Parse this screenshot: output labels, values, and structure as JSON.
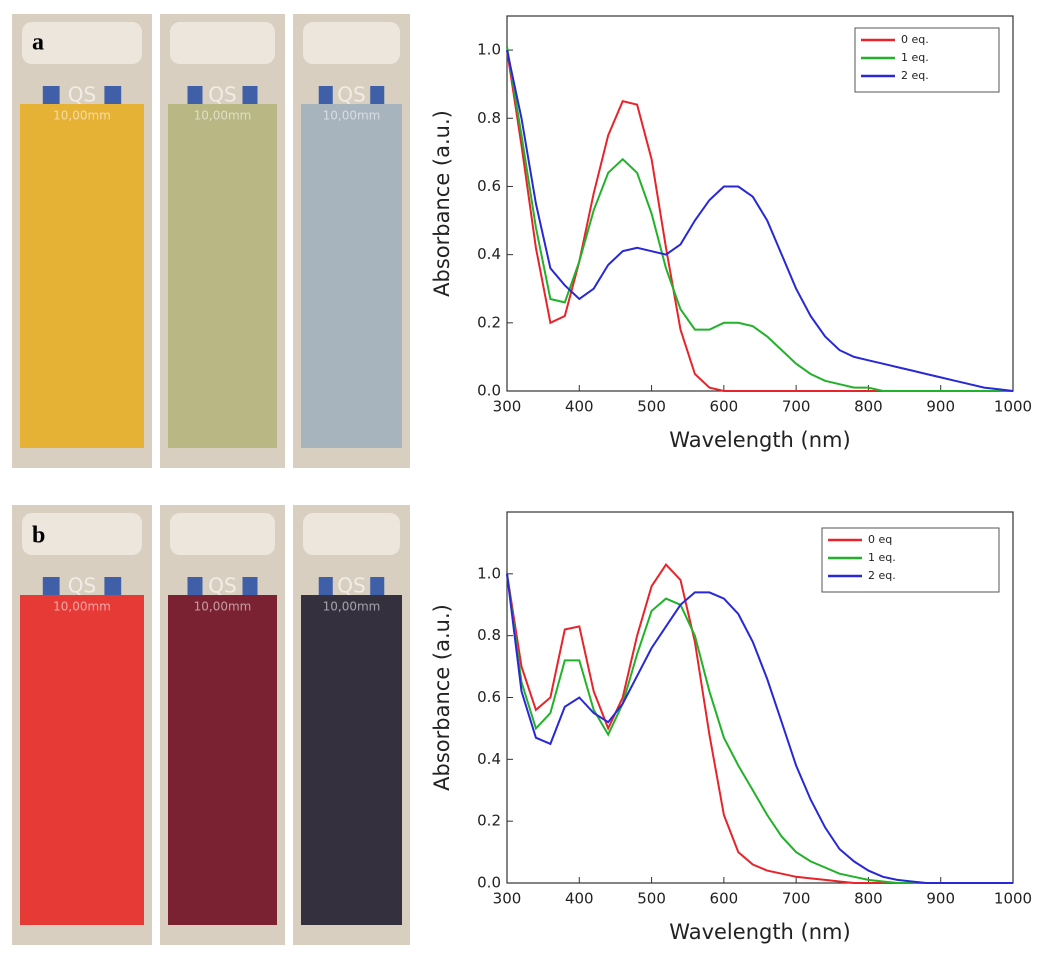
{
  "chart_data": [
    {
      "type": "line",
      "panel": "a",
      "cuvettes": [
        {
          "label": "QS",
          "sublabel": "10,00mm",
          "color": "#e6b236"
        },
        {
          "label": "QS",
          "sublabel": "10,00mm",
          "color": "#b9b784"
        },
        {
          "label": "QS",
          "sublabel": "10,00mm",
          "color": "#a7b3bd"
        }
      ],
      "x_label": "Wavelength (nm)",
      "y_label": "Absorbance (a.u.)",
      "x": [
        300,
        320,
        340,
        360,
        380,
        400,
        420,
        440,
        460,
        480,
        500,
        520,
        540,
        560,
        580,
        600,
        620,
        640,
        660,
        680,
        700,
        720,
        740,
        760,
        780,
        800,
        820,
        840,
        860,
        880,
        900,
        920,
        940,
        960,
        980,
        1000
      ],
      "series": [
        {
          "name": "0 eq.",
          "color": "#e8232a",
          "values": [
            1.0,
            0.72,
            0.42,
            0.2,
            0.22,
            0.38,
            0.58,
            0.75,
            0.85,
            0.84,
            0.68,
            0.42,
            0.18,
            0.05,
            0.01,
            0,
            0,
            0,
            0,
            0,
            0,
            0,
            0,
            0,
            0,
            0,
            0,
            0,
            0,
            0,
            0,
            0,
            0,
            0,
            0,
            0
          ]
        },
        {
          "name": "1 eq.",
          "color": "#22b22a",
          "values": [
            1.01,
            0.75,
            0.48,
            0.27,
            0.26,
            0.38,
            0.53,
            0.64,
            0.68,
            0.64,
            0.52,
            0.36,
            0.24,
            0.18,
            0.18,
            0.2,
            0.2,
            0.19,
            0.16,
            0.12,
            0.08,
            0.05,
            0.03,
            0.02,
            0.01,
            0.01,
            0,
            0,
            0,
            0,
            0,
            0,
            0,
            0,
            0,
            0
          ]
        },
        {
          "name": "2 eq.",
          "color": "#2828d8",
          "values": [
            1.0,
            0.8,
            0.55,
            0.36,
            0.31,
            0.27,
            0.3,
            0.37,
            0.41,
            0.42,
            0.41,
            0.4,
            0.43,
            0.5,
            0.56,
            0.6,
            0.6,
            0.57,
            0.5,
            0.4,
            0.3,
            0.22,
            0.16,
            0.12,
            0.1,
            0.09,
            0.08,
            0.07,
            0.06,
            0.05,
            0.04,
            0.03,
            0.02,
            0.01,
            0.005,
            0
          ]
        }
      ],
      "xlim": [
        300,
        1000
      ],
      "xticks": [
        300,
        400,
        500,
        600,
        700,
        800,
        900,
        1000
      ],
      "ylim": [
        0,
        1.1
      ],
      "yticks": [
        {
          "value": 0,
          "label": "0.0"
        },
        {
          "value": 0.2,
          "label": "0.2"
        },
        {
          "value": 0.4,
          "label": "0.4"
        },
        {
          "value": 0.6,
          "label": "0.6"
        },
        {
          "value": 0.8,
          "label": "0.8"
        },
        {
          "value": 1,
          "label": "1.0"
        }
      ],
      "legend": "upper right"
    },
    {
      "type": "line",
      "panel": "b",
      "cuvettes": [
        {
          "label": "QS",
          "sublabel": "10,00mm",
          "color": "#e53a36"
        },
        {
          "label": "QS",
          "sublabel": "10,00mm",
          "color": "#7a2232"
        },
        {
          "label": "QS",
          "sublabel": "10,00mm",
          "color": "#34303e"
        }
      ],
      "x_label": "Wavelength (nm)",
      "y_label": "Absorbance (a.u.)",
      "x": [
        300,
        320,
        340,
        360,
        380,
        400,
        420,
        440,
        460,
        480,
        500,
        520,
        540,
        560,
        580,
        600,
        620,
        640,
        660,
        680,
        700,
        720,
        740,
        760,
        780,
        800,
        820,
        840,
        860,
        880,
        900,
        920,
        940,
        960,
        980,
        1000
      ],
      "series": [
        {
          "name": "0 eq",
          "color": "#e8232a",
          "values": [
            1.0,
            0.7,
            0.56,
            0.6,
            0.82,
            0.83,
            0.62,
            0.5,
            0.6,
            0.8,
            0.96,
            1.03,
            0.98,
            0.78,
            0.48,
            0.22,
            0.1,
            0.06,
            0.04,
            0.03,
            0.02,
            0.015,
            0.01,
            0.005,
            0,
            0,
            0,
            0,
            0,
            0,
            0,
            0,
            0,
            0,
            0,
            0
          ]
        },
        {
          "name": "1 eq.",
          "color": "#22b22a",
          "values": [
            1.0,
            0.65,
            0.5,
            0.55,
            0.72,
            0.72,
            0.56,
            0.48,
            0.58,
            0.74,
            0.88,
            0.92,
            0.9,
            0.8,
            0.62,
            0.47,
            0.38,
            0.3,
            0.22,
            0.15,
            0.1,
            0.07,
            0.05,
            0.03,
            0.02,
            0.01,
            0.005,
            0,
            0,
            0,
            0,
            0,
            0,
            0,
            0,
            0
          ]
        },
        {
          "name": "2 eq.",
          "color": "#2828d8",
          "values": [
            1.0,
            0.62,
            0.47,
            0.45,
            0.57,
            0.6,
            0.55,
            0.52,
            0.58,
            0.67,
            0.76,
            0.83,
            0.9,
            0.94,
            0.94,
            0.92,
            0.87,
            0.78,
            0.66,
            0.52,
            0.38,
            0.27,
            0.18,
            0.11,
            0.07,
            0.04,
            0.02,
            0.01,
            0.005,
            0,
            0,
            0,
            0,
            0,
            0,
            0
          ]
        }
      ],
      "xlim": [
        300,
        1000
      ],
      "xticks": [
        300,
        400,
        500,
        600,
        700,
        800,
        900,
        1000
      ],
      "ylim": [
        0,
        1.2
      ],
      "yticks": [
        {
          "value": 0,
          "label": "0.0"
        },
        {
          "value": 0.2,
          "label": "0.2"
        },
        {
          "value": 0.4,
          "label": "0.4"
        },
        {
          "value": 0.6,
          "label": "0.6"
        },
        {
          "value": 0.8,
          "label": "0.8"
        },
        {
          "value": 1,
          "label": "1.0"
        }
      ],
      "legend": "upper right"
    }
  ]
}
